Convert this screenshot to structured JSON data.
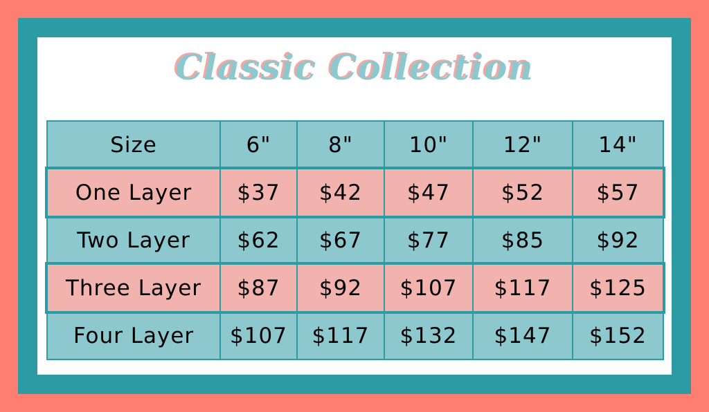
{
  "title": "Classic Collection",
  "colors": {
    "background": "#FF7E72",
    "frame": "#2C9BA3",
    "header_row": "#8DC8CF",
    "alt_row": "#F2B2AE"
  },
  "table": {
    "header": [
      "Size",
      "6\"",
      "8\"",
      "10\"",
      "12\"",
      "14\""
    ],
    "rows": [
      [
        "One Layer",
        "$37",
        "$42",
        "$47",
        "$52",
        "$57"
      ],
      [
        "Two Layer",
        "$62",
        "$67",
        "$77",
        "$85",
        "$92"
      ],
      [
        "Three Layer",
        "$87",
        "$92",
        "$107",
        "$117",
        "$125"
      ],
      [
        "Four Layer",
        "$107",
        "$117",
        "$132",
        "$147",
        "$152"
      ]
    ]
  }
}
